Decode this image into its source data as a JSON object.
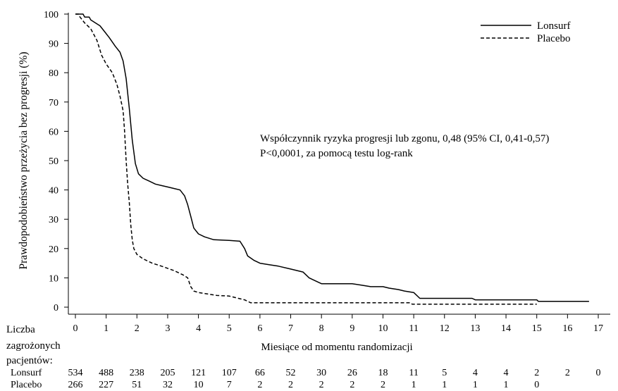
{
  "chart_data": {
    "type": "line",
    "ylabel": "Prawdopodobieństwo przeżycia bez progresji (%)",
    "xlabel": "Miesiące od momentu randomizacji",
    "xlim": [
      0,
      17
    ],
    "ylim": [
      0,
      100
    ],
    "x_ticks": [
      "0",
      "1",
      "2",
      "3",
      "4",
      "5",
      "6",
      "7",
      "8",
      "9",
      "10",
      "11",
      "12",
      "13",
      "14",
      "15",
      "16",
      "17"
    ],
    "y_ticks": [
      "0",
      "10",
      "20",
      "30",
      "40",
      "50",
      "60",
      "70",
      "80",
      "90",
      "100"
    ],
    "grid": false,
    "legend_position": "top-right",
    "annotation": [
      "Współczynnik ryzyka progresji lub zgonu, 0,48 (95% CI, 0,41-0,57)",
      "P<0,0001, za pomocą testu log-rank"
    ],
    "series": [
      {
        "name": "Lonsurf",
        "style": "solid",
        "points": [
          [
            0,
            100
          ],
          [
            0.25,
            100
          ],
          [
            0.3,
            99
          ],
          [
            0.45,
            99
          ],
          [
            0.5,
            98
          ],
          [
            0.65,
            97
          ],
          [
            0.8,
            96
          ],
          [
            0.95,
            94
          ],
          [
            1.1,
            92
          ],
          [
            1.3,
            89
          ],
          [
            1.45,
            87
          ],
          [
            1.55,
            84
          ],
          [
            1.65,
            78
          ],
          [
            1.75,
            68
          ],
          [
            1.85,
            57
          ],
          [
            1.95,
            49
          ],
          [
            2.05,
            45.5
          ],
          [
            2.2,
            44
          ],
          [
            2.4,
            43
          ],
          [
            2.6,
            42
          ],
          [
            2.8,
            41.5
          ],
          [
            3.0,
            41
          ],
          [
            3.2,
            40.5
          ],
          [
            3.4,
            40
          ],
          [
            3.55,
            38
          ],
          [
            3.65,
            35
          ],
          [
            3.75,
            31
          ],
          [
            3.85,
            27
          ],
          [
            4.0,
            25
          ],
          [
            4.2,
            24
          ],
          [
            4.5,
            23
          ],
          [
            5.0,
            22.8
          ],
          [
            5.35,
            22.5
          ],
          [
            5.5,
            20
          ],
          [
            5.6,
            17.5
          ],
          [
            5.8,
            16
          ],
          [
            6.0,
            15
          ],
          [
            6.3,
            14.5
          ],
          [
            6.6,
            14
          ],
          [
            7.0,
            13
          ],
          [
            7.4,
            12
          ],
          [
            7.6,
            10
          ],
          [
            7.8,
            9
          ],
          [
            8.0,
            8
          ],
          [
            8.6,
            8
          ],
          [
            9.0,
            8
          ],
          [
            9.3,
            7.5
          ],
          [
            9.6,
            7
          ],
          [
            10.0,
            7
          ],
          [
            10.2,
            6.5
          ],
          [
            10.5,
            6
          ],
          [
            10.7,
            5.5
          ],
          [
            11.0,
            5
          ],
          [
            11.2,
            3
          ],
          [
            12.0,
            3
          ],
          [
            12.9,
            3
          ],
          [
            13.0,
            2.5
          ],
          [
            15.0,
            2.5
          ],
          [
            15.05,
            2
          ],
          [
            16.7,
            2
          ]
        ]
      },
      {
        "name": "Placebo",
        "style": "dashed",
        "points": [
          [
            0,
            100
          ],
          [
            0.1,
            100
          ],
          [
            0.15,
            99
          ],
          [
            0.3,
            97
          ],
          [
            0.5,
            95
          ],
          [
            0.7,
            91
          ],
          [
            0.85,
            86
          ],
          [
            1.0,
            83
          ],
          [
            1.2,
            80
          ],
          [
            1.35,
            76
          ],
          [
            1.45,
            72
          ],
          [
            1.55,
            67
          ],
          [
            1.6,
            60
          ],
          [
            1.65,
            50
          ],
          [
            1.7,
            42
          ],
          [
            1.75,
            36
          ],
          [
            1.8,
            28
          ],
          [
            1.85,
            23
          ],
          [
            1.9,
            20
          ],
          [
            2.0,
            18
          ],
          [
            2.2,
            16.5
          ],
          [
            2.5,
            15
          ],
          [
            2.8,
            14
          ],
          [
            3.2,
            12.5
          ],
          [
            3.5,
            11
          ],
          [
            3.65,
            10
          ],
          [
            3.75,
            7
          ],
          [
            3.85,
            5.5
          ],
          [
            4.0,
            5
          ],
          [
            4.3,
            4.5
          ],
          [
            4.6,
            4
          ],
          [
            5.0,
            3.8
          ],
          [
            5.3,
            3
          ],
          [
            5.5,
            2.5
          ],
          [
            5.7,
            1.5
          ],
          [
            6.0,
            1.5
          ],
          [
            10.9,
            1.5
          ],
          [
            10.95,
            1
          ],
          [
            15.0,
            1
          ]
        ]
      }
    ],
    "risk_table": {
      "title_lines": [
        "Liczba",
        "zagrożonych",
        "pacjentów:"
      ],
      "rows": [
        {
          "label": "Lonsurf",
          "values": [
            "534",
            "488",
            "238",
            "205",
            "121",
            "107",
            "66",
            "52",
            "30",
            "26",
            "18",
            "11",
            "5",
            "4",
            "4",
            "2",
            "2",
            "0"
          ]
        },
        {
          "label": "Placebo",
          "values": [
            "266",
            "227",
            "51",
            "32",
            "10",
            "7",
            "2",
            "2",
            "2",
            "2",
            "2",
            "1",
            "1",
            "1",
            "1",
            "0"
          ]
        }
      ]
    }
  }
}
